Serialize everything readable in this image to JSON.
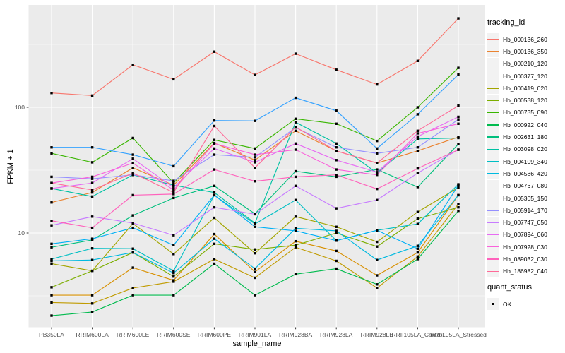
{
  "legend": {
    "tracking_title": "tracking_id",
    "quant_title": "quant_status",
    "quant_items": [
      {
        "label": "OK",
        "marker": "black-filled-square"
      }
    ]
  },
  "chart_data": {
    "type": "line",
    "title": "",
    "xlabel": "sample_name",
    "ylabel": "FPKM + 1",
    "y_scale": "log10",
    "ylim": [
      1.78,
      650
    ],
    "y_ticks": [
      100,
      10
    ],
    "y_minor_ticks": [
      316.23,
      31.62,
      3.162
    ],
    "grid": "white-on-gray-panel",
    "legend_position": "right",
    "point_marker": "small-black-square",
    "categories": [
      "PB350LA",
      "RRIM600LA",
      "RRIM600LE",
      "RRIM600SE",
      "RRIM600PE",
      "RRIM901LA",
      "RRIM928BA",
      "RRIM928LA",
      "RRIM928LE",
      "RRII105LA_Control",
      "RRII105LA_Stressed"
    ],
    "series": [
      {
        "name": "Hb_000136_260",
        "color": "#F8766D",
        "values": [
          130,
          124,
          218,
          167,
          277,
          181,
          267,
          199,
          152,
          234,
          510
        ]
      },
      {
        "name": "Hb_000136_350",
        "color": "#EA8331",
        "values": [
          17.5,
          21,
          33,
          24,
          52,
          38,
          65,
          45,
          36,
          45,
          58
        ]
      },
      {
        "name": "Hb_000210_120",
        "color": "#D89000",
        "values": [
          3.2,
          3.2,
          5.3,
          4.2,
          9.8,
          4.9,
          8.6,
          7.2,
          4.6,
          7.0,
          20
        ]
      },
      {
        "name": "Hb_000377_120",
        "color": "#C09B00",
        "values": [
          2.8,
          2.75,
          3.65,
          4.1,
          6.2,
          4.4,
          7.7,
          6.0,
          3.65,
          6.5,
          17
        ]
      },
      {
        "name": "Hb_000419_020",
        "color": "#A3A500",
        "values": [
          5.7,
          5.0,
          11.9,
          6.8,
          13.2,
          6.9,
          13.5,
          11.2,
          8.5,
          14.7,
          23
        ]
      },
      {
        "name": "Hb_000538_120",
        "color": "#7CAE00",
        "values": [
          3.7,
          5.0,
          7.0,
          4.5,
          8.2,
          7.4,
          8.0,
          10.0,
          7.8,
          13.0,
          16
        ]
      },
      {
        "name": "Hb_000735_090",
        "color": "#39B600",
        "values": [
          43,
          36.5,
          57,
          25,
          55,
          47,
          81,
          74,
          54,
          100,
          206
        ]
      },
      {
        "name": "Hb_000922_040",
        "color": "#00BB4E",
        "values": [
          2.2,
          2.35,
          3.2,
          3.2,
          5.7,
          3.2,
          4.7,
          5.2,
          3.9,
          6.2,
          15
        ]
      },
      {
        "name": "Hb_002631_180",
        "color": "#00BF7D",
        "values": [
          7.7,
          8.8,
          13.8,
          19,
          23.7,
          14.2,
          31,
          28,
          32,
          23.2,
          51
        ]
      },
      {
        "name": "Hb_003098_020",
        "color": "#00C1A3",
        "values": [
          22.6,
          19.5,
          29,
          24,
          21,
          12,
          76,
          51.5,
          30,
          56,
          57
        ]
      },
      {
        "name": "Hb_004109_340",
        "color": "#00BFC4",
        "values": [
          6.2,
          7.55,
          7.5,
          5.0,
          20,
          11.8,
          18.3,
          8.7,
          10.5,
          11.8,
          24.4
        ]
      },
      {
        "name": "Hb_004586_420",
        "color": "#00BAE0",
        "values": [
          6.0,
          6.1,
          7.0,
          4.8,
          9.0,
          5.2,
          10.9,
          10.4,
          6.1,
          7.9,
          20
        ]
      },
      {
        "name": "Hb_004767_080",
        "color": "#00B0F6",
        "values": [
          8.2,
          9.0,
          11,
          8.0,
          20,
          11.2,
          10.4,
          8.7,
          10.5,
          7.5,
          24
        ]
      },
      {
        "name": "Hb_005305_150",
        "color": "#35A2FF",
        "values": [
          48,
          48,
          42,
          34,
          78.5,
          78,
          119,
          94,
          47,
          88,
          182
        ]
      },
      {
        "name": "Hb_005914_170",
        "color": "#9590FF",
        "values": [
          28,
          27,
          29,
          26,
          42,
          40,
          69,
          48,
          43,
          48,
          80
        ]
      },
      {
        "name": "Hb_007747_050",
        "color": "#C77CFF",
        "values": [
          11.5,
          13.5,
          12,
          9.6,
          16,
          14.1,
          23.7,
          15.7,
          18.3,
          30,
          46
        ]
      },
      {
        "name": "Hb_007894_060",
        "color": "#E76BF3",
        "values": [
          22.6,
          25,
          39,
          23,
          47,
          36.5,
          51.5,
          38,
          30.5,
          58.5,
          84
        ]
      },
      {
        "name": "Hb_007928_030",
        "color": "#FA62DB",
        "values": [
          25,
          28,
          36,
          22,
          51.5,
          42,
          46,
          32,
          29,
          62,
          74
        ]
      },
      {
        "name": "Hb_089032_030",
        "color": "#FF62BC",
        "values": [
          12.5,
          11,
          20,
          20.4,
          32,
          25.8,
          28,
          29,
          22.4,
          32.6,
          46
        ]
      },
      {
        "name": "Hb_186982_040",
        "color": "#FF6A98",
        "values": [
          25,
          22,
          30,
          21,
          71,
          33,
          69.6,
          45,
          36,
          65,
          103
        ]
      }
    ]
  }
}
